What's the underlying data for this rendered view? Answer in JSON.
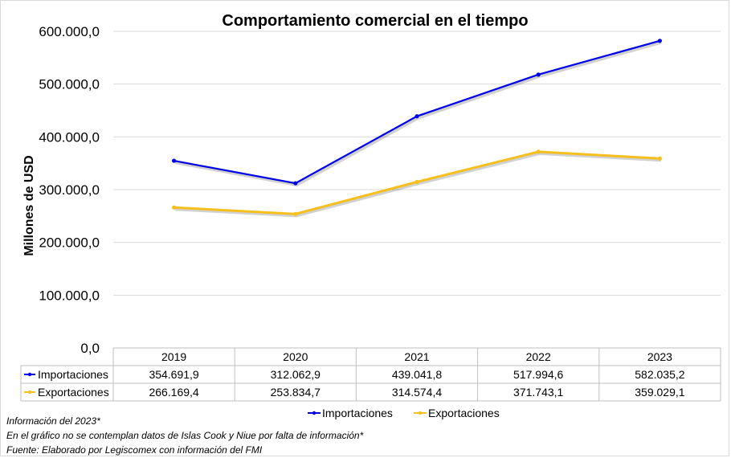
{
  "chart_data": {
    "type": "line",
    "title": "Comportamiento comercial en el tiempo",
    "ylabel": "Millones de USD",
    "xlabel": "",
    "categories": [
      "2019",
      "2020",
      "2021",
      "2022",
      "2023"
    ],
    "ylim": [
      0,
      600000
    ],
    "yticks": [
      0,
      100000,
      200000,
      300000,
      400000,
      500000,
      600000
    ],
    "ytick_labels": [
      "0,0",
      "100.000,0",
      "200.000,0",
      "300.000,0",
      "400.000,0",
      "500.000,0",
      "600.000,0"
    ],
    "grid": true,
    "legend_position": "bottom",
    "series": [
      {
        "name": "Importaciones",
        "color": "#0000e6",
        "values": [
          354691.9,
          312062.9,
          439041.8,
          517994.6,
          582035.2
        ],
        "labels": [
          "354.691,9",
          "312.062,9",
          "439.041,8",
          "517.994,6",
          "582.035,2"
        ]
      },
      {
        "name": "Exportaciones",
        "color": "#f5bf1d",
        "values": [
          266169.4,
          253834.7,
          314574.4,
          371743.1,
          359029.1
        ],
        "labels": [
          "266.169,4",
          "253.834,7",
          "314.574,4",
          "371.743,1",
          "359.029,1"
        ]
      }
    ]
  },
  "notes": [
    "Información del 2023*",
    "En el gráfico no se contemplan datos de Islas Cook y Niue por falta de información*",
    "Fuente: Elaborado por Legiscomex con información del FMI"
  ]
}
